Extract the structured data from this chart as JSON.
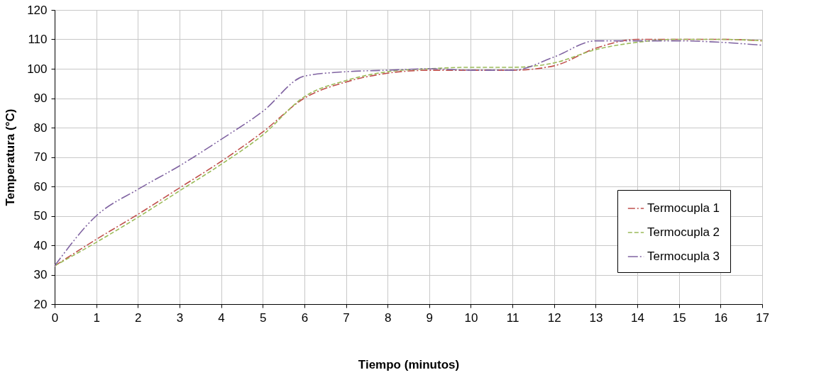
{
  "chart_data": {
    "type": "line",
    "xlabel": "Tiempo (minutos)",
    "ylabel": "Temperatura  (°C)",
    "x": [
      0,
      1,
      2,
      3,
      4,
      5,
      6,
      7,
      8,
      9,
      10,
      11,
      12,
      13,
      14,
      15,
      16,
      17
    ],
    "series": [
      {
        "name": "Termocupla 1",
        "color": "#c0504d",
        "line_style": "dashdot",
        "values": [
          33,
          42,
          50.5,
          59.5,
          68.5,
          78.5,
          90,
          95.5,
          98.5,
          99.5,
          99.5,
          99.5,
          101,
          107,
          110,
          110,
          110,
          109.5
        ]
      },
      {
        "name": "Termocupla 2",
        "color": "#9bbb59",
        "line_style": "dashed",
        "values": [
          33,
          41,
          49.5,
          58.5,
          67.5,
          77.5,
          90.5,
          96,
          99,
          100,
          100.5,
          100.5,
          102,
          106.5,
          109,
          110,
          110,
          109.5
        ]
      },
      {
        "name": "Termocupla 3",
        "color": "#8064a2",
        "line_style": "dashdotdot",
        "values": [
          33,
          50,
          59,
          67,
          76,
          85.5,
          97.5,
          99,
          99.5,
          100,
          99.5,
          99.5,
          104,
          109.5,
          109.5,
          109.5,
          109,
          108
        ]
      }
    ],
    "xlim": [
      0,
      17
    ],
    "xticks": [
      0,
      1,
      2,
      3,
      4,
      5,
      6,
      7,
      8,
      9,
      10,
      11,
      12,
      13,
      14,
      15,
      16,
      17
    ],
    "ylim": [
      20,
      120
    ],
    "yticks": [
      20,
      30,
      40,
      50,
      60,
      70,
      80,
      90,
      100,
      110,
      120
    ],
    "grid": true,
    "legend": "bottom right",
    "marker": "none"
  }
}
